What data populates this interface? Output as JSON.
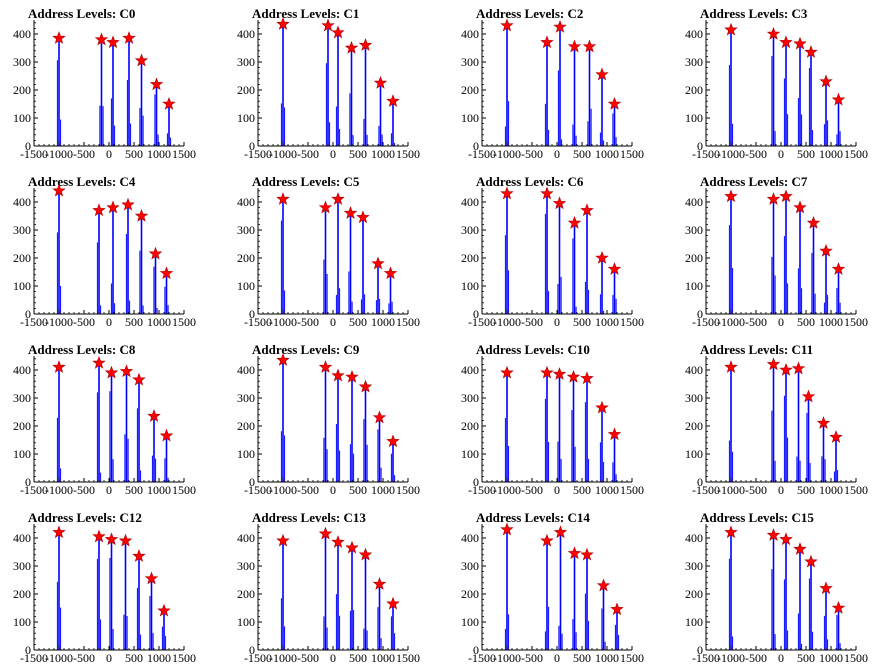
{
  "colors": {
    "histogram": "#0000ff",
    "marker": "#ff0000",
    "axis": "#000000",
    "background": "#ffffff"
  },
  "x_tick_labels": [
    "-1500",
    "-1000",
    "-500",
    "0",
    "500",
    "1000",
    "1500"
  ],
  "y_tick_labels": [
    "0",
    "100",
    "200",
    "300",
    "400"
  ],
  "chart_data": [
    {
      "type": "bar",
      "title": "Address Levels: C0",
      "xlim": [
        -1500,
        1500
      ],
      "ylim": [
        0,
        450
      ],
      "peaks": [
        {
          "x": -1000,
          "y": 385
        },
        {
          "x": -150,
          "y": 380
        },
        {
          "x": 80,
          "y": 370
        },
        {
          "x": 400,
          "y": 385
        },
        {
          "x": 650,
          "y": 305
        },
        {
          "x": 950,
          "y": 220
        },
        {
          "x": 1200,
          "y": 150
        }
      ]
    },
    {
      "type": "bar",
      "title": "Address Levels: C1",
      "xlim": [
        -1500,
        1500
      ],
      "ylim": [
        0,
        450
      ],
      "peaks": [
        {
          "x": -1000,
          "y": 435
        },
        {
          "x": -100,
          "y": 430
        },
        {
          "x": 100,
          "y": 405
        },
        {
          "x": 370,
          "y": 350
        },
        {
          "x": 650,
          "y": 360
        },
        {
          "x": 950,
          "y": 225
        },
        {
          "x": 1200,
          "y": 160
        }
      ]
    },
    {
      "type": "bar",
      "title": "Address Levels: C2",
      "xlim": [
        -1500,
        1500
      ],
      "ylim": [
        0,
        450
      ],
      "peaks": [
        {
          "x": -1000,
          "y": 430
        },
        {
          "x": -200,
          "y": 370
        },
        {
          "x": 60,
          "y": 425
        },
        {
          "x": 350,
          "y": 355
        },
        {
          "x": 650,
          "y": 355
        },
        {
          "x": 900,
          "y": 255
        },
        {
          "x": 1150,
          "y": 150
        }
      ]
    },
    {
      "type": "bar",
      "title": "Address Levels: C3",
      "xlim": [
        -1500,
        1500
      ],
      "ylim": [
        0,
        450
      ],
      "peaks": [
        {
          "x": -1000,
          "y": 415
        },
        {
          "x": -150,
          "y": 400
        },
        {
          "x": 100,
          "y": 370
        },
        {
          "x": 380,
          "y": 365
        },
        {
          "x": 600,
          "y": 335
        },
        {
          "x": 900,
          "y": 230
        },
        {
          "x": 1150,
          "y": 165
        }
      ]
    },
    {
      "type": "bar",
      "title": "Address Levels: C4",
      "xlim": [
        -1500,
        1500
      ],
      "ylim": [
        0,
        450
      ],
      "peaks": [
        {
          "x": -1000,
          "y": 440
        },
        {
          "x": -200,
          "y": 370
        },
        {
          "x": 80,
          "y": 380
        },
        {
          "x": 380,
          "y": 390
        },
        {
          "x": 650,
          "y": 350
        },
        {
          "x": 930,
          "y": 215
        },
        {
          "x": 1150,
          "y": 145
        }
      ]
    },
    {
      "type": "bar",
      "title": "Address Levels: C5",
      "xlim": [
        -1500,
        1500
      ],
      "ylim": [
        0,
        450
      ],
      "peaks": [
        {
          "x": -1000,
          "y": 410
        },
        {
          "x": -150,
          "y": 380
        },
        {
          "x": 100,
          "y": 410
        },
        {
          "x": 350,
          "y": 360
        },
        {
          "x": 600,
          "y": 345
        },
        {
          "x": 900,
          "y": 180
        },
        {
          "x": 1150,
          "y": 145
        }
      ]
    },
    {
      "type": "bar",
      "title": "Address Levels: C6",
      "xlim": [
        -1500,
        1500
      ],
      "ylim": [
        0,
        450
      ],
      "peaks": [
        {
          "x": -1000,
          "y": 430
        },
        {
          "x": -200,
          "y": 430
        },
        {
          "x": 50,
          "y": 395
        },
        {
          "x": 350,
          "y": 325
        },
        {
          "x": 600,
          "y": 370
        },
        {
          "x": 900,
          "y": 200
        },
        {
          "x": 1150,
          "y": 160
        }
      ]
    },
    {
      "type": "bar",
      "title": "Address Levels: C7",
      "xlim": [
        -1500,
        1500
      ],
      "ylim": [
        0,
        450
      ],
      "peaks": [
        {
          "x": -1000,
          "y": 420
        },
        {
          "x": -150,
          "y": 410
        },
        {
          "x": 100,
          "y": 420
        },
        {
          "x": 380,
          "y": 380
        },
        {
          "x": 650,
          "y": 325
        },
        {
          "x": 900,
          "y": 225
        },
        {
          "x": 1150,
          "y": 160
        }
      ]
    },
    {
      "type": "bar",
      "title": "Address Levels: C8",
      "xlim": [
        -1500,
        1500
      ],
      "ylim": [
        0,
        450
      ],
      "peaks": [
        {
          "x": -1000,
          "y": 410
        },
        {
          "x": -200,
          "y": 425
        },
        {
          "x": 50,
          "y": 390
        },
        {
          "x": 350,
          "y": 395
        },
        {
          "x": 600,
          "y": 365
        },
        {
          "x": 900,
          "y": 235
        },
        {
          "x": 1150,
          "y": 165
        }
      ]
    },
    {
      "type": "bar",
      "title": "Address Levels: C9",
      "xlim": [
        -1500,
        1500
      ],
      "ylim": [
        0,
        450
      ],
      "peaks": [
        {
          "x": -1000,
          "y": 435
        },
        {
          "x": -150,
          "y": 410
        },
        {
          "x": 100,
          "y": 380
        },
        {
          "x": 380,
          "y": 375
        },
        {
          "x": 650,
          "y": 340
        },
        {
          "x": 930,
          "y": 230
        },
        {
          "x": 1200,
          "y": 145
        }
      ]
    },
    {
      "type": "bar",
      "title": "Address Levels: C10",
      "xlim": [
        -1500,
        1500
      ],
      "ylim": [
        0,
        450
      ],
      "peaks": [
        {
          "x": -1000,
          "y": 390
        },
        {
          "x": -200,
          "y": 390
        },
        {
          "x": 50,
          "y": 385
        },
        {
          "x": 330,
          "y": 375
        },
        {
          "x": 600,
          "y": 370
        },
        {
          "x": 900,
          "y": 265
        },
        {
          "x": 1150,
          "y": 170
        }
      ]
    },
    {
      "type": "bar",
      "title": "Address Levels: C11",
      "xlim": [
        -1500,
        1500
      ],
      "ylim": [
        0,
        450
      ],
      "peaks": [
        {
          "x": -1000,
          "y": 410
        },
        {
          "x": -150,
          "y": 420
        },
        {
          "x": 100,
          "y": 400
        },
        {
          "x": 350,
          "y": 405
        },
        {
          "x": 550,
          "y": 305
        },
        {
          "x": 850,
          "y": 210
        },
        {
          "x": 1100,
          "y": 160
        }
      ]
    },
    {
      "type": "bar",
      "title": "Address Levels: C12",
      "xlim": [
        -1500,
        1500
      ],
      "ylim": [
        0,
        450
      ],
      "peaks": [
        {
          "x": -1000,
          "y": 420
        },
        {
          "x": -200,
          "y": 405
        },
        {
          "x": 50,
          "y": 395
        },
        {
          "x": 330,
          "y": 390
        },
        {
          "x": 600,
          "y": 335
        },
        {
          "x": 850,
          "y": 255
        },
        {
          "x": 1100,
          "y": 140
        }
      ]
    },
    {
      "type": "bar",
      "title": "Address Levels: C13",
      "xlim": [
        -1500,
        1500
      ],
      "ylim": [
        0,
        450
      ],
      "peaks": [
        {
          "x": -1000,
          "y": 390
        },
        {
          "x": -150,
          "y": 415
        },
        {
          "x": 100,
          "y": 385
        },
        {
          "x": 380,
          "y": 365
        },
        {
          "x": 650,
          "y": 340
        },
        {
          "x": 930,
          "y": 235
        },
        {
          "x": 1200,
          "y": 165
        }
      ]
    },
    {
      "type": "bar",
      "title": "Address Levels: C14",
      "xlim": [
        -1500,
        1500
      ],
      "ylim": [
        0,
        450
      ],
      "peaks": [
        {
          "x": -1000,
          "y": 430
        },
        {
          "x": -200,
          "y": 390
        },
        {
          "x": 70,
          "y": 420
        },
        {
          "x": 350,
          "y": 345
        },
        {
          "x": 600,
          "y": 340
        },
        {
          "x": 930,
          "y": 230
        },
        {
          "x": 1200,
          "y": 145
        }
      ]
    },
    {
      "type": "bar",
      "title": "Address Levels: C15",
      "xlim": [
        -1500,
        1500
      ],
      "ylim": [
        0,
        450
      ],
      "peaks": [
        {
          "x": -1000,
          "y": 420
        },
        {
          "x": -150,
          "y": 410
        },
        {
          "x": 100,
          "y": 395
        },
        {
          "x": 380,
          "y": 360
        },
        {
          "x": 600,
          "y": 315
        },
        {
          "x": 900,
          "y": 220
        },
        {
          "x": 1150,
          "y": 150
        }
      ]
    }
  ]
}
